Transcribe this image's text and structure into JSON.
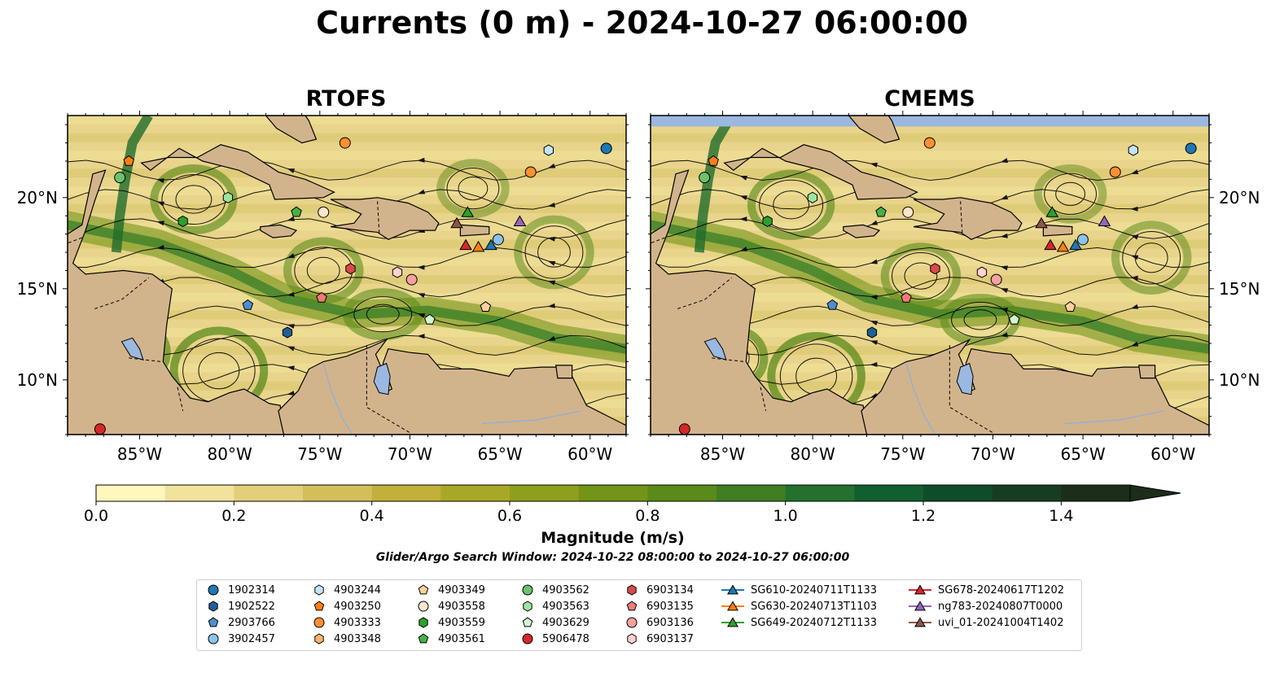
{
  "title": "Currents (0 m) - 2024-10-27 06:00:00",
  "panels": [
    {
      "title": "RTOFS"
    },
    {
      "title": "CMEMS"
    }
  ],
  "axes": {
    "x_ticks": [
      "85°W",
      "80°W",
      "75°W",
      "70°W",
      "65°W",
      "60°W"
    ],
    "y_ticks": [
      "20°N",
      "15°N",
      "10°N"
    ],
    "lon_range": [
      -89,
      -58
    ],
    "lat_range": [
      7,
      24.5
    ]
  },
  "colorbar": {
    "label": "Magnitude (m/s)",
    "ticks": [
      "0.0",
      "0.2",
      "0.4",
      "0.6",
      "0.8",
      "1.0",
      "1.2",
      "1.4"
    ],
    "range": [
      0,
      1.5
    ],
    "extend": "max",
    "colors": [
      "#fff7bc",
      "#f1e39b",
      "#e3cf7a",
      "#d3bf5a",
      "#c1b13a",
      "#a8a828",
      "#8e9f1e",
      "#739419",
      "#5a8a1a",
      "#3f7e22",
      "#23712c",
      "#115f2f",
      "#0f4d2a",
      "#163d22",
      "#1c2e1a"
    ]
  },
  "search_window": "Glider/Argo Search Window: 2024-10-22 08:00:00 to 2024-10-27 06:00:00",
  "colors": {
    "land": "#d2b48c",
    "water_blue": "#9ab8e0",
    "ocean_low": "#f1e39b"
  },
  "legend": {
    "columns": [
      [
        {
          "label": "1902314",
          "marker": "circle",
          "color": "#1f77b4"
        },
        {
          "label": "1902522",
          "marker": "hexagon",
          "color": "#1f5f9a"
        },
        {
          "label": "2903766",
          "marker": "pentagon",
          "color": "#4b8fcf"
        },
        {
          "label": "3902457",
          "marker": "circle",
          "color": "#8cc3ea"
        }
      ],
      [
        {
          "label": "4903244",
          "marker": "hexagon",
          "color": "#c6e3f7"
        },
        {
          "label": "4903250",
          "marker": "pentagon",
          "color": "#ff7f0e"
        },
        {
          "label": "4903333",
          "marker": "circle",
          "color": "#ff9030"
        },
        {
          "label": "4903348",
          "marker": "hexagon",
          "color": "#ffb26b"
        }
      ],
      [
        {
          "label": "4903349",
          "marker": "pentagon",
          "color": "#ffd0a0"
        },
        {
          "label": "4903558",
          "marker": "circle",
          "color": "#ffe6cc"
        },
        {
          "label": "4903559",
          "marker": "hexagon",
          "color": "#2ca02c"
        },
        {
          "label": "4903561",
          "marker": "pentagon",
          "color": "#45b245"
        }
      ],
      [
        {
          "label": "4903562",
          "marker": "circle",
          "color": "#6cc36c"
        },
        {
          "label": "4903563",
          "marker": "hexagon",
          "color": "#9ee49e"
        },
        {
          "label": "4903629",
          "marker": "pentagon",
          "color": "#d2f5d2"
        },
        {
          "label": "5906478",
          "marker": "circle",
          "color": "#d62728"
        }
      ],
      [
        {
          "label": "6903134",
          "marker": "hexagon",
          "color": "#d94a4a"
        },
        {
          "label": "6903135",
          "marker": "pentagon",
          "color": "#f07a7a"
        },
        {
          "label": "6903136",
          "marker": "circle",
          "color": "#f7a0a0"
        },
        {
          "label": "6903137",
          "marker": "hexagon",
          "color": "#ffd1d1"
        }
      ],
      [
        {
          "label": "SG610-20240711T1133",
          "marker": "triangle",
          "color": "#1f77b4"
        },
        {
          "label": "SG630-20240713T1103",
          "marker": "triangle",
          "color": "#ff7f0e"
        },
        {
          "label": "SG649-20240712T1133",
          "marker": "triangle",
          "color": "#2ca02c"
        }
      ],
      [
        {
          "label": "SG678-20240617T1202",
          "marker": "triangle",
          "color": "#d62728"
        },
        {
          "label": "ng783-20240807T0000",
          "marker": "triangle",
          "color": "#9467bd"
        },
        {
          "label": "uvi_01-20241004T1402",
          "marker": "triangle",
          "color": "#8c564b"
        }
      ]
    ]
  },
  "floats": [
    {
      "id": "1902314",
      "lon": -59.1,
      "lat": 22.7
    },
    {
      "id": "1902522",
      "lon": -76.8,
      "lat": 12.6
    },
    {
      "id": "2903766",
      "lon": -79.0,
      "lat": 14.1
    },
    {
      "id": "3902457",
      "lon": -65.1,
      "lat": 17.7
    },
    {
      "id": "4903244",
      "lon": -62.3,
      "lat": 22.6
    },
    {
      "id": "4903250",
      "lon": -85.6,
      "lat": 22.0
    },
    {
      "id": "4903333",
      "lon": -73.6,
      "lat": 23.0
    },
    {
      "id": "4903333b",
      "lon": -63.3,
      "lat": 21.4
    },
    {
      "id": "4903349",
      "lon": -65.8,
      "lat": 14.0
    },
    {
      "id": "4903558",
      "lon": -74.8,
      "lat": 19.2
    },
    {
      "id": "4903559",
      "lon": -82.6,
      "lat": 18.7
    },
    {
      "id": "4903561",
      "lon": -76.3,
      "lat": 19.2
    },
    {
      "id": "4903562",
      "lon": -86.1,
      "lat": 21.1
    },
    {
      "id": "4903563",
      "lon": -80.1,
      "lat": 20.0
    },
    {
      "id": "4903629",
      "lon": -68.9,
      "lat": 13.3
    },
    {
      "id": "5906478",
      "lon": -87.2,
      "lat": 7.3
    },
    {
      "id": "6903134",
      "lon": -73.3,
      "lat": 16.1
    },
    {
      "id": "6903135",
      "lon": -74.9,
      "lat": 14.5
    },
    {
      "id": "6903136",
      "lon": -69.9,
      "lat": 15.5
    },
    {
      "id": "6903137",
      "lon": -70.7,
      "lat": 15.9
    }
  ],
  "gliders": [
    {
      "id": "SG610-20240711T1133",
      "lon": -65.5,
      "lat": 17.4,
      "color": "#1f77b4"
    },
    {
      "id": "SG630-20240713T1103",
      "lon": -66.2,
      "lat": 17.3,
      "color": "#ff7f0e"
    },
    {
      "id": "SG649-20240712T1133",
      "lon": -66.8,
      "lat": 19.2,
      "color": "#2ca02c"
    },
    {
      "id": "SG678-20240617T1202",
      "lon": -66.9,
      "lat": 17.4,
      "color": "#d62728"
    },
    {
      "id": "ng783-20240807T0000",
      "lon": -63.9,
      "lat": 18.7,
      "color": "#9467bd"
    },
    {
      "id": "uvi_01-20241004T1402",
      "lon": -67.4,
      "lat": 18.6,
      "color": "#8c564b"
    }
  ]
}
